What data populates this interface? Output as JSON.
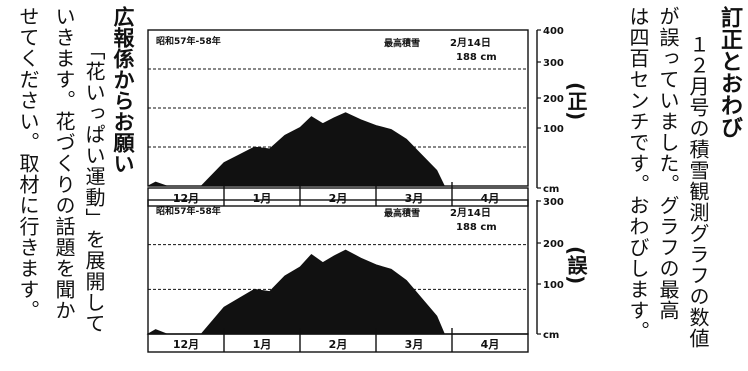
{
  "correction": {
    "title": "訂正とおわび",
    "lines": [
      "１２月号の積雪観測グラフの数値",
      "が誤っていました。グラフの最高",
      "は四百センチです。おわびします。"
    ]
  },
  "pr": {
    "title": "広報係からお願い",
    "lines": [
      "「花いっぱい運動」を展開して",
      "いきます。花づくりの話題を聞か",
      "せてください。取材に行きます。"
    ]
  },
  "charts_meta": [
    {
      "period": "昭和57年-58年",
      "max_label": "最高積雪",
      "max_date": "2月14日",
      "max_value": "188 cm",
      "tag": "(正)",
      "y_ticks": [
        "400",
        "300",
        "200",
        "100",
        "cm"
      ]
    },
    {
      "period": "昭和57年-58年",
      "max_label": "最高積雪",
      "max_date": "2月14日",
      "max_value": "188 cm",
      "tag": "(誤)",
      "y_ticks": [
        "300",
        "200",
        "100",
        "cm"
      ]
    }
  ],
  "chart_data": [
    {
      "type": "area",
      "title": "",
      "categories": [
        "12月",
        "1月",
        "2月",
        "3月",
        "4月"
      ],
      "ylim": [
        0,
        400
      ],
      "y_ticks": [
        100,
        200,
        300
      ],
      "grid": "dotted horizontal",
      "series": [
        {
          "x": [
            0.0,
            0.1,
            0.25,
            0.4,
            0.55,
            0.7,
            1.0,
            1.2,
            1.4,
            1.6,
            1.8,
            2.0,
            2.15,
            2.3,
            2.45,
            2.6,
            2.8,
            3.0,
            3.2,
            3.4,
            3.6,
            3.8,
            3.9
          ],
          "values": [
            0,
            10,
            0,
            0,
            0,
            0,
            60,
            80,
            100,
            95,
            130,
            150,
            178,
            160,
            175,
            188,
            170,
            155,
            145,
            120,
            80,
            40,
            0
          ]
        }
      ]
    },
    {
      "type": "area",
      "title": "",
      "categories": [
        "12月",
        "1月",
        "2月",
        "3月",
        "4月"
      ],
      "ylim": [
        0,
        300
      ],
      "y_ticks": [
        100,
        200
      ],
      "grid": "dotted horizontal",
      "series": [
        {
          "x": [
            0.0,
            0.1,
            0.25,
            0.4,
            0.55,
            0.7,
            1.0,
            1.2,
            1.4,
            1.6,
            1.8,
            2.0,
            2.15,
            2.3,
            2.45,
            2.6,
            2.8,
            3.0,
            3.2,
            3.4,
            3.6,
            3.8,
            3.9
          ],
          "values": [
            0,
            10,
            0,
            0,
            0,
            0,
            60,
            80,
            100,
            95,
            130,
            150,
            178,
            160,
            175,
            188,
            170,
            155,
            145,
            120,
            80,
            40,
            0
          ]
        }
      ]
    }
  ]
}
